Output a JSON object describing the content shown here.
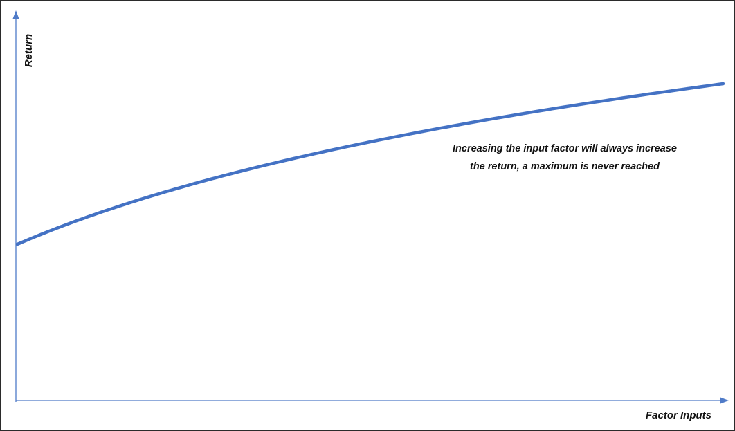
{
  "chart_data": {
    "type": "line",
    "title": "",
    "xlabel": "Factor Inputs",
    "ylabel": "Return",
    "grid": false,
    "annotation": [
      "Increasing the input factor will always increase",
      "the return, a maximum is never reached"
    ],
    "curve_shape": "concave increasing (diminishing returns, unbounded)"
  },
  "colors": {
    "axis": "#4f7bc8",
    "curve": "#4472c4",
    "text": "#111111"
  }
}
